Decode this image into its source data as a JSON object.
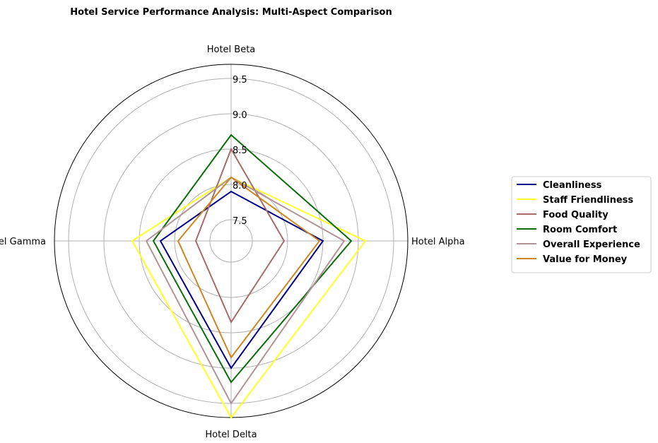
{
  "chart_data": {
    "type": "radar",
    "title": "Hotel Service Performance Analysis: Multi-Aspect Comparison",
    "categories": [
      "Hotel Alpha",
      "Hotel Beta",
      "Hotel Gamma",
      "Hotel Delta"
    ],
    "rlim": [
      7.2,
      9.7
    ],
    "rticks": [
      "7.5",
      "8.0",
      "8.5",
      "9.0",
      "9.5"
    ],
    "grid": true,
    "legend_position": "right",
    "series": [
      {
        "name": "Cleanliness",
        "color": "#00008b",
        "values": [
          8.5,
          7.9,
          8.2,
          9.0
        ]
      },
      {
        "name": "Staff Friendliness",
        "color": "#ffff24",
        "values": [
          9.1,
          8.1,
          8.6,
          9.7
        ]
      },
      {
        "name": "Food Quality",
        "color": "#a86c68",
        "values": [
          7.95,
          8.5,
          7.7,
          8.35
        ]
      },
      {
        "name": "Room Comfort",
        "color": "#0a6e0a",
        "values": [
          8.9,
          8.7,
          8.3,
          9.2
        ]
      },
      {
        "name": "Overall Experience",
        "color": "#b29398",
        "values": [
          8.8,
          8.1,
          8.4,
          9.5
        ]
      },
      {
        "name": "Value for Money",
        "color": "#ce8622",
        "values": [
          8.45,
          8.1,
          7.95,
          8.85
        ]
      }
    ]
  }
}
